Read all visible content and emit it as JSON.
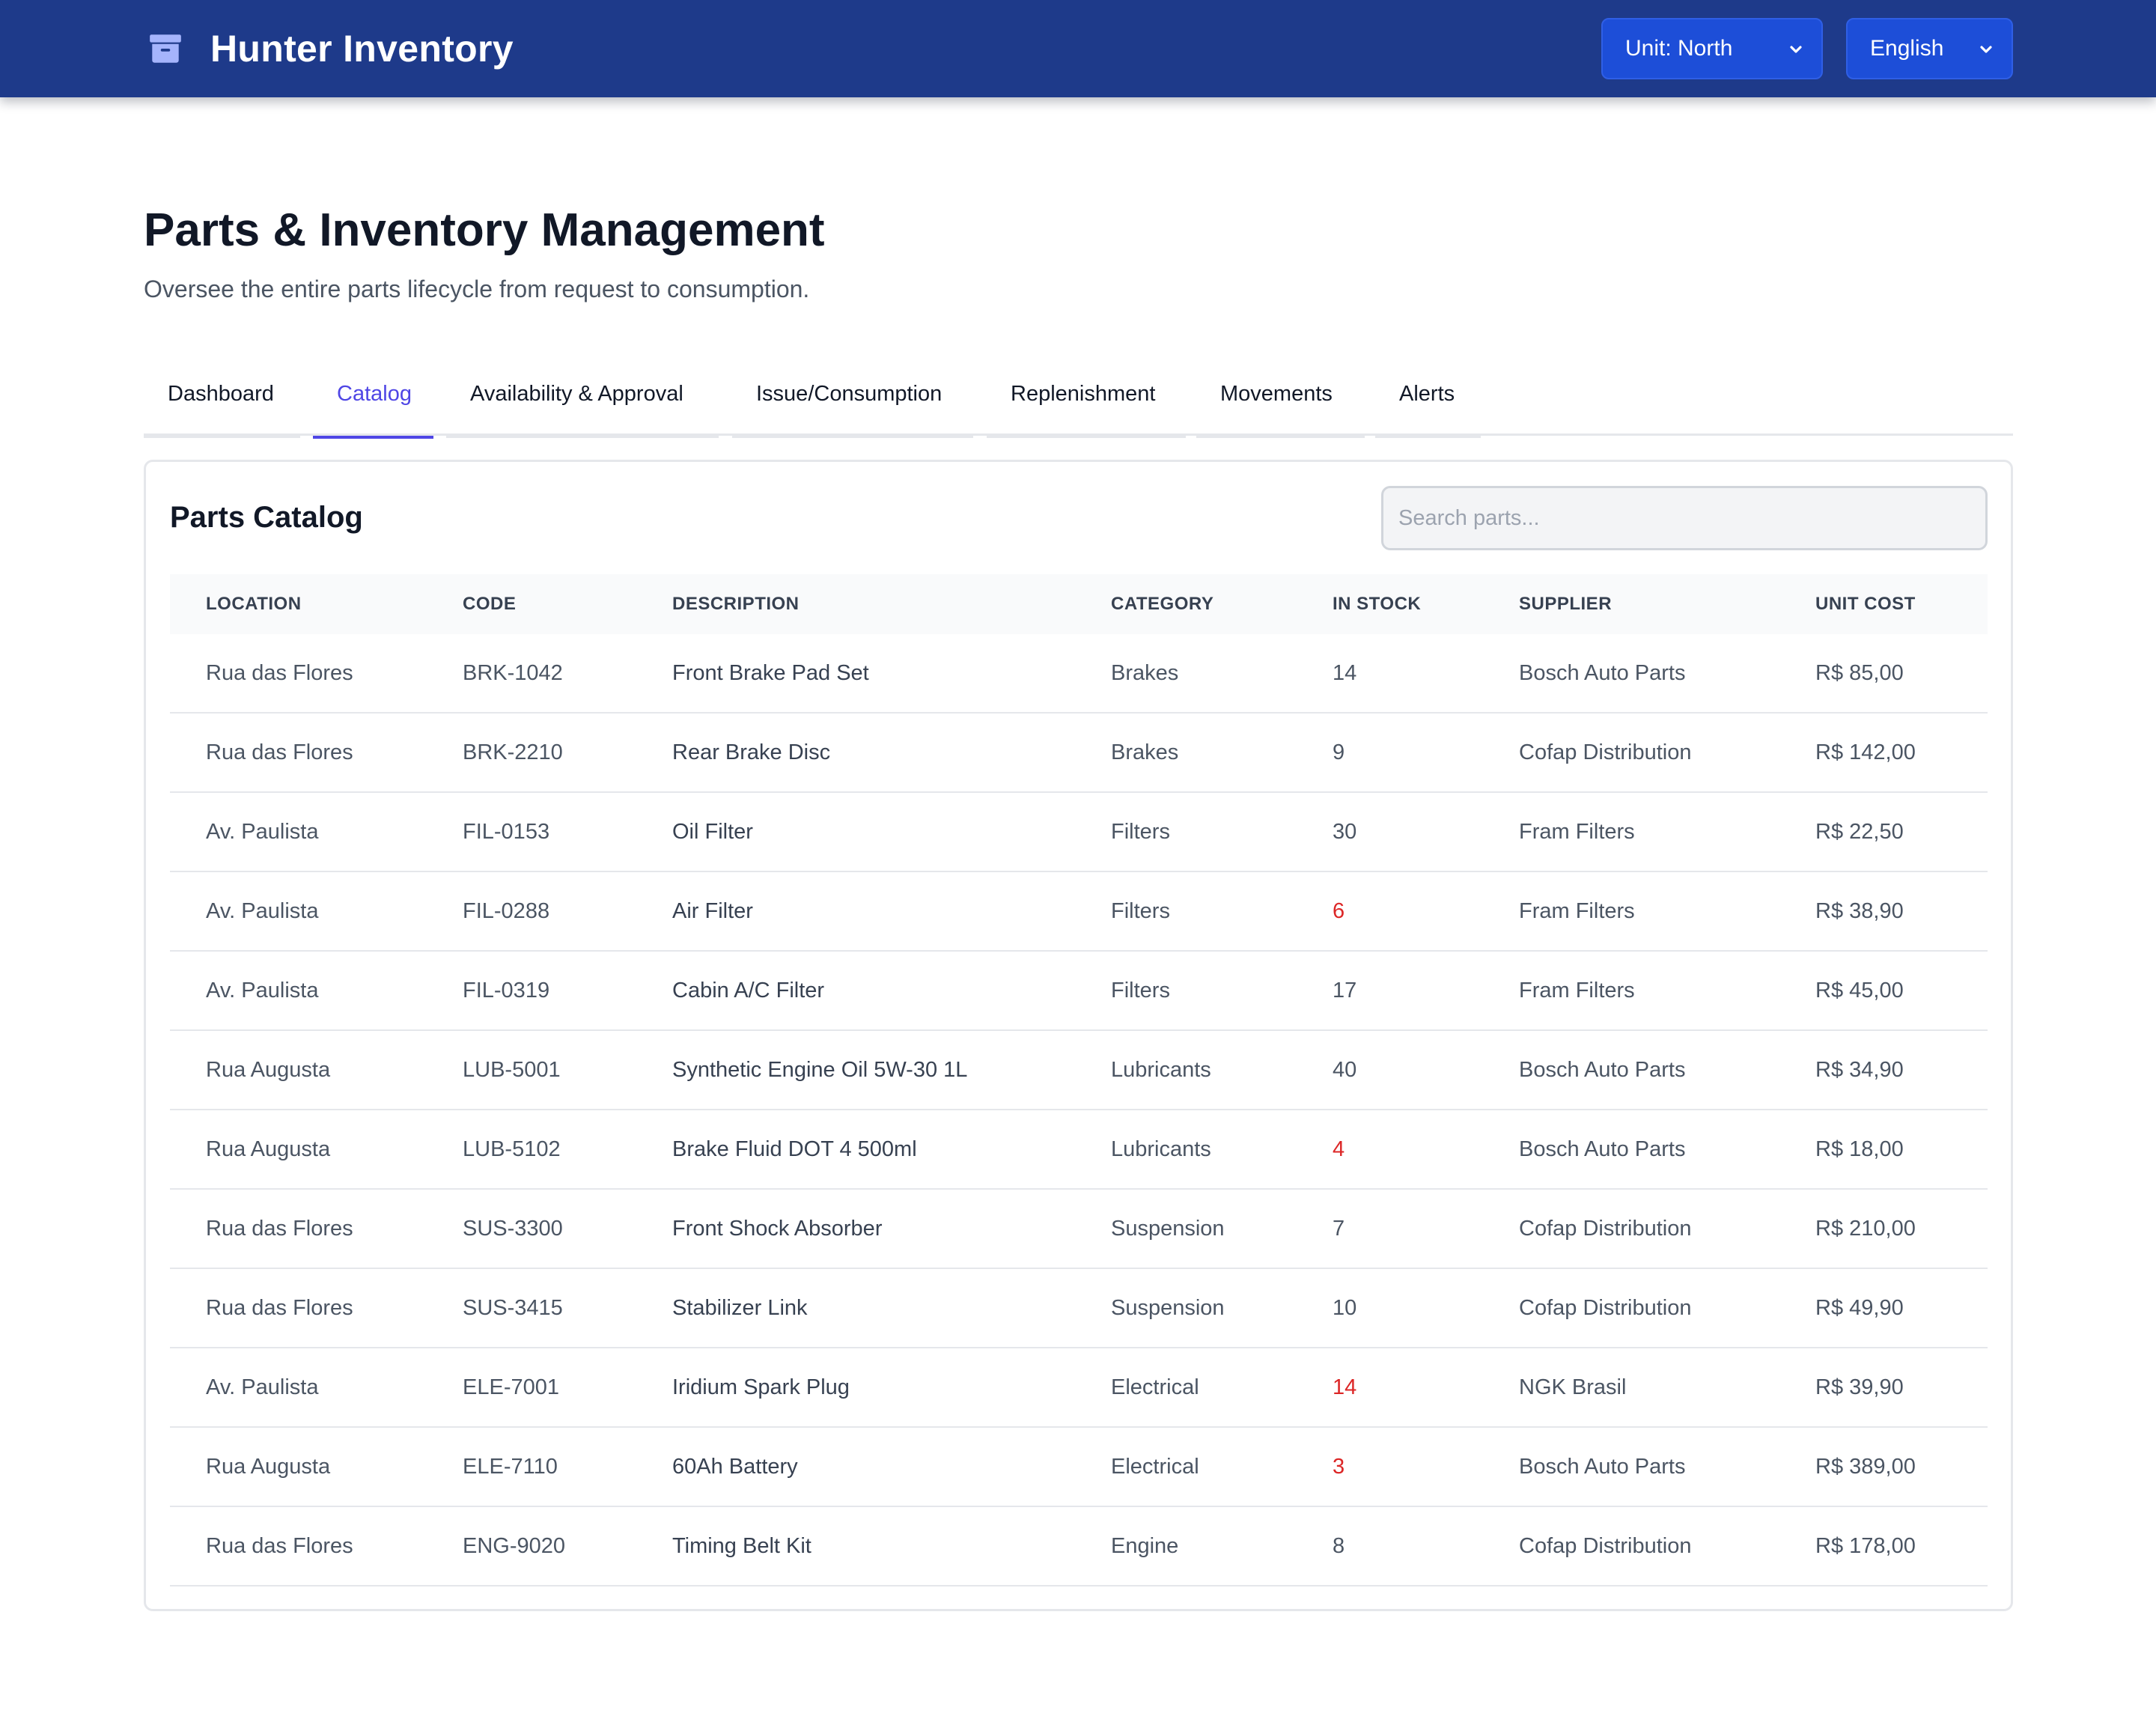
{
  "app": {
    "title": "Hunter Inventory",
    "unit_select": "Unit: North",
    "language_select": "English"
  },
  "header": {
    "title": "Parts & Inventory Management",
    "subtitle": "Oversee the entire parts lifecycle from request to consumption."
  },
  "tabs": [
    {
      "label": "Dashboard",
      "active": false
    },
    {
      "label": "Catalog",
      "active": true
    },
    {
      "label": "Availability & Approval",
      "active": false
    },
    {
      "label": "Issue/Consumption",
      "active": false
    },
    {
      "label": "Replenishment",
      "active": false
    },
    {
      "label": "Movements",
      "active": false
    },
    {
      "label": "Alerts",
      "active": false
    }
  ],
  "catalog": {
    "title": "Parts Catalog",
    "search_placeholder": "Search parts...",
    "columns": [
      "LOCATION",
      "CODE",
      "DESCRIPTION",
      "CATEGORY",
      "IN STOCK",
      "SUPPLIER",
      "UNIT COST"
    ],
    "rows": [
      {
        "location": "Rua das Flores",
        "code": "BRK-1042",
        "description": "Front Brake Pad Set",
        "category": "Brakes",
        "stock": "14",
        "low": false,
        "supplier": "Bosch Auto Parts",
        "cost": "R$ 85,00"
      },
      {
        "location": "Rua das Flores",
        "code": "BRK-2210",
        "description": "Rear Brake Disc",
        "category": "Brakes",
        "stock": "9",
        "low": false,
        "supplier": "Cofap Distribution",
        "cost": "R$ 142,00"
      },
      {
        "location": "Av. Paulista",
        "code": "FIL-0153",
        "description": "Oil Filter",
        "category": "Filters",
        "stock": "30",
        "low": false,
        "supplier": "Fram Filters",
        "cost": "R$ 22,50"
      },
      {
        "location": "Av. Paulista",
        "code": "FIL-0288",
        "description": "Air Filter",
        "category": "Filters",
        "stock": "6",
        "low": true,
        "supplier": "Fram Filters",
        "cost": "R$ 38,90"
      },
      {
        "location": "Av. Paulista",
        "code": "FIL-0319",
        "description": "Cabin A/C Filter",
        "category": "Filters",
        "stock": "17",
        "low": false,
        "supplier": "Fram Filters",
        "cost": "R$ 45,00"
      },
      {
        "location": "Rua Augusta",
        "code": "LUB-5001",
        "description": "Synthetic Engine Oil 5W-30 1L",
        "category": "Lubricants",
        "stock": "40",
        "low": false,
        "supplier": "Bosch Auto Parts",
        "cost": "R$ 34,90"
      },
      {
        "location": "Rua Augusta",
        "code": "LUB-5102",
        "description": "Brake Fluid DOT 4 500ml",
        "category": "Lubricants",
        "stock": "4",
        "low": true,
        "supplier": "Bosch Auto Parts",
        "cost": "R$ 18,00"
      },
      {
        "location": "Rua das Flores",
        "code": "SUS-3300",
        "description": "Front Shock Absorber",
        "category": "Suspension",
        "stock": "7",
        "low": false,
        "supplier": "Cofap Distribution",
        "cost": "R$ 210,00"
      },
      {
        "location": "Rua das Flores",
        "code": "SUS-3415",
        "description": "Stabilizer Link",
        "category": "Suspension",
        "stock": "10",
        "low": false,
        "supplier": "Cofap Distribution",
        "cost": "R$ 49,90"
      },
      {
        "location": "Av. Paulista",
        "code": "ELE-7001",
        "description": "Iridium Spark Plug",
        "category": "Electrical",
        "stock": "14",
        "low": true,
        "supplier": "NGK Brasil",
        "cost": "R$ 39,90"
      },
      {
        "location": "Rua Augusta",
        "code": "ELE-7110",
        "description": "60Ah Battery",
        "category": "Electrical",
        "stock": "3",
        "low": true,
        "supplier": "Bosch Auto Parts",
        "cost": "R$ 389,00"
      },
      {
        "location": "Rua das Flores",
        "code": "ENG-9020",
        "description": "Timing Belt Kit",
        "category": "Engine",
        "stock": "8",
        "low": false,
        "supplier": "Cofap Distribution",
        "cost": "R$ 178,00"
      }
    ]
  },
  "colors": {
    "topbar": "#1e3a8a",
    "accent": "#4f46e5",
    "low_stock": "#dc2626"
  },
  "icons": {
    "brand": "archive-box-icon",
    "select_arrow": "chevron-down-icon"
  }
}
